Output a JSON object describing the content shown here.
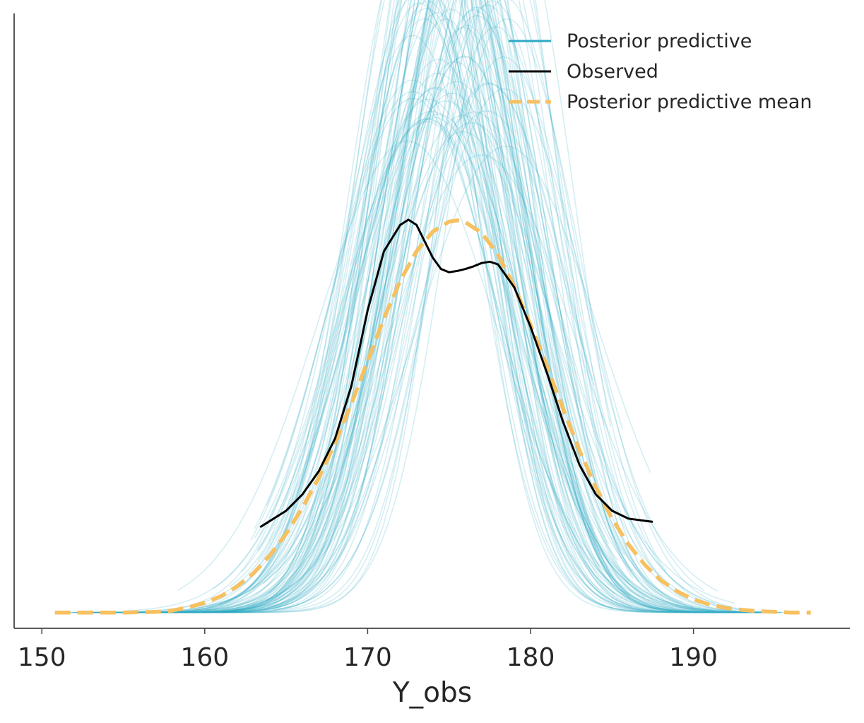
{
  "chart_data": {
    "type": "line",
    "title": "",
    "xlabel": "Y_obs",
    "ylabel": "",
    "xlim": [
      148.3,
      199.6
    ],
    "ylim": [
      -0.0024,
      0.0912
    ],
    "x_ticks": [
      150,
      160,
      170,
      180,
      190
    ],
    "x_tick_labels": [
      "150",
      "160",
      "170",
      "180",
      "190"
    ],
    "y_ticks_visible": false,
    "grid": false,
    "legend_position": "top-right",
    "colors": {
      "posterior_predictive": "#2ea8c5",
      "observed": "#000000",
      "posterior_predictive_mean": "#f7c060",
      "axis": "#444444"
    },
    "legend": [
      {
        "key": "pp",
        "label": "Posterior predictive"
      },
      {
        "key": "obs",
        "label": "Observed"
      },
      {
        "key": "mean",
        "label": "Posterior predictive mean"
      }
    ],
    "series": [
      {
        "name": "Posterior predictive",
        "style": "thin translucent lines, 100 posterior predictive draws",
        "draw_count": 100,
        "approx_center_range": [
          172.5,
          178.5
        ],
        "approx_sd_range": [
          3.3,
          5.4
        ],
        "approx_peak_density_range": [
          0.05,
          0.085
        ]
      },
      {
        "name": "Observed",
        "x": [
          163.4,
          165,
          166,
          167,
          168,
          169,
          170,
          171,
          172,
          172.5,
          173,
          173.5,
          174,
          174.5,
          175,
          175.5,
          176,
          176.5,
          177,
          177.5,
          178,
          179,
          180,
          181,
          182,
          183,
          184,
          185,
          186,
          187.5
        ],
        "y": [
          0.013,
          0.0155,
          0.018,
          0.0215,
          0.0265,
          0.0345,
          0.046,
          0.055,
          0.059,
          0.0598,
          0.059,
          0.0565,
          0.054,
          0.0523,
          0.0518,
          0.052,
          0.0523,
          0.0527,
          0.0532,
          0.0534,
          0.053,
          0.0495,
          0.0435,
          0.0365,
          0.029,
          0.0225,
          0.018,
          0.0155,
          0.0143,
          0.0138
        ]
      },
      {
        "name": "Posterior predictive mean",
        "x": [
          150.8,
          153,
          155,
          157,
          158,
          159,
          160,
          161,
          162,
          163,
          164,
          165,
          166,
          167,
          168,
          169,
          170,
          171,
          172,
          173,
          174,
          175,
          175.5,
          176,
          177,
          178,
          179,
          180,
          181,
          182,
          183,
          184,
          185,
          186,
          187,
          188,
          189,
          190,
          191,
          192,
          193,
          194,
          195,
          196,
          197.2
        ],
        "y": [
          0.0,
          0.0,
          0.0,
          0.0001,
          0.0003,
          0.0008,
          0.0015,
          0.0025,
          0.004,
          0.006,
          0.0087,
          0.012,
          0.016,
          0.0205,
          0.0258,
          0.0318,
          0.0383,
          0.0448,
          0.0505,
          0.055,
          0.058,
          0.0595,
          0.0597,
          0.0594,
          0.0578,
          0.0545,
          0.0496,
          0.0438,
          0.0375,
          0.031,
          0.0247,
          0.0191,
          0.0143,
          0.0104,
          0.0073,
          0.0049,
          0.0032,
          0.002,
          0.0012,
          0.0007,
          0.0004,
          0.0002,
          0.0001,
          0.0,
          0.0
        ]
      }
    ]
  }
}
